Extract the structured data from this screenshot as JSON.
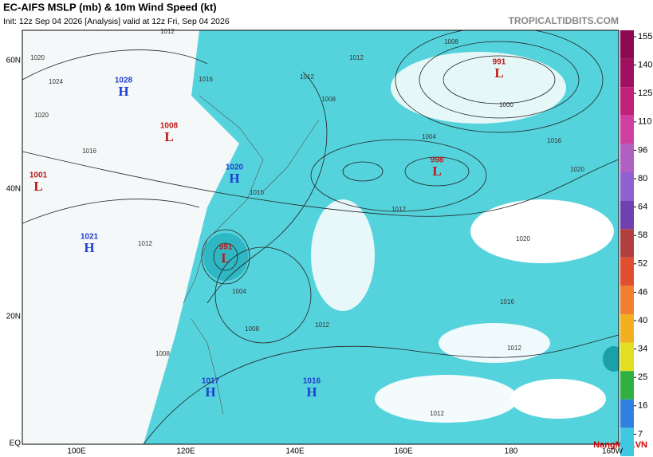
{
  "header": {
    "title": "EC-AIFS MSLP (mb) & 10m Wind Speed (kt)",
    "init": "Init: 12z Sep 04 2026   [Analysis]   valid at 12z Fri, Sep 04 2026",
    "source": "TROPICALTIDBITS.COM"
  },
  "axes": {
    "lat": [
      "60N",
      "40N",
      "20N",
      "EQ"
    ],
    "lon": [
      "100E",
      "120E",
      "140E",
      "160E",
      "180",
      "160W"
    ]
  },
  "colorbar": {
    "ticks": [
      155,
      140,
      125,
      110,
      96,
      80,
      64,
      58,
      52,
      46,
      40,
      34,
      25,
      16,
      7
    ]
  },
  "centers": [
    {
      "kind": "H",
      "value": "1028"
    },
    {
      "kind": "L",
      "value": "1008"
    },
    {
      "kind": "L",
      "value": "1001"
    },
    {
      "kind": "H",
      "value": "1020"
    },
    {
      "kind": "H",
      "value": "1021"
    },
    {
      "kind": "L",
      "value": "991"
    },
    {
      "kind": "L",
      "value": "991"
    },
    {
      "kind": "L",
      "value": "998"
    },
    {
      "kind": "H",
      "value": "1017"
    },
    {
      "kind": "H",
      "value": "1016"
    }
  ],
  "isobar_labels": [
    "1020",
    "1024",
    "1020",
    "1016",
    "1012",
    "1016",
    "1012",
    "1008",
    "1012",
    "1004",
    "1008",
    "1000",
    "1016",
    "1020",
    "1012",
    "1016",
    "1020",
    "1016",
    "1012",
    "1008",
    "1004",
    "1008",
    "1012",
    "1012",
    "1012"
  ],
  "watermark": "NangMua.VN"
}
